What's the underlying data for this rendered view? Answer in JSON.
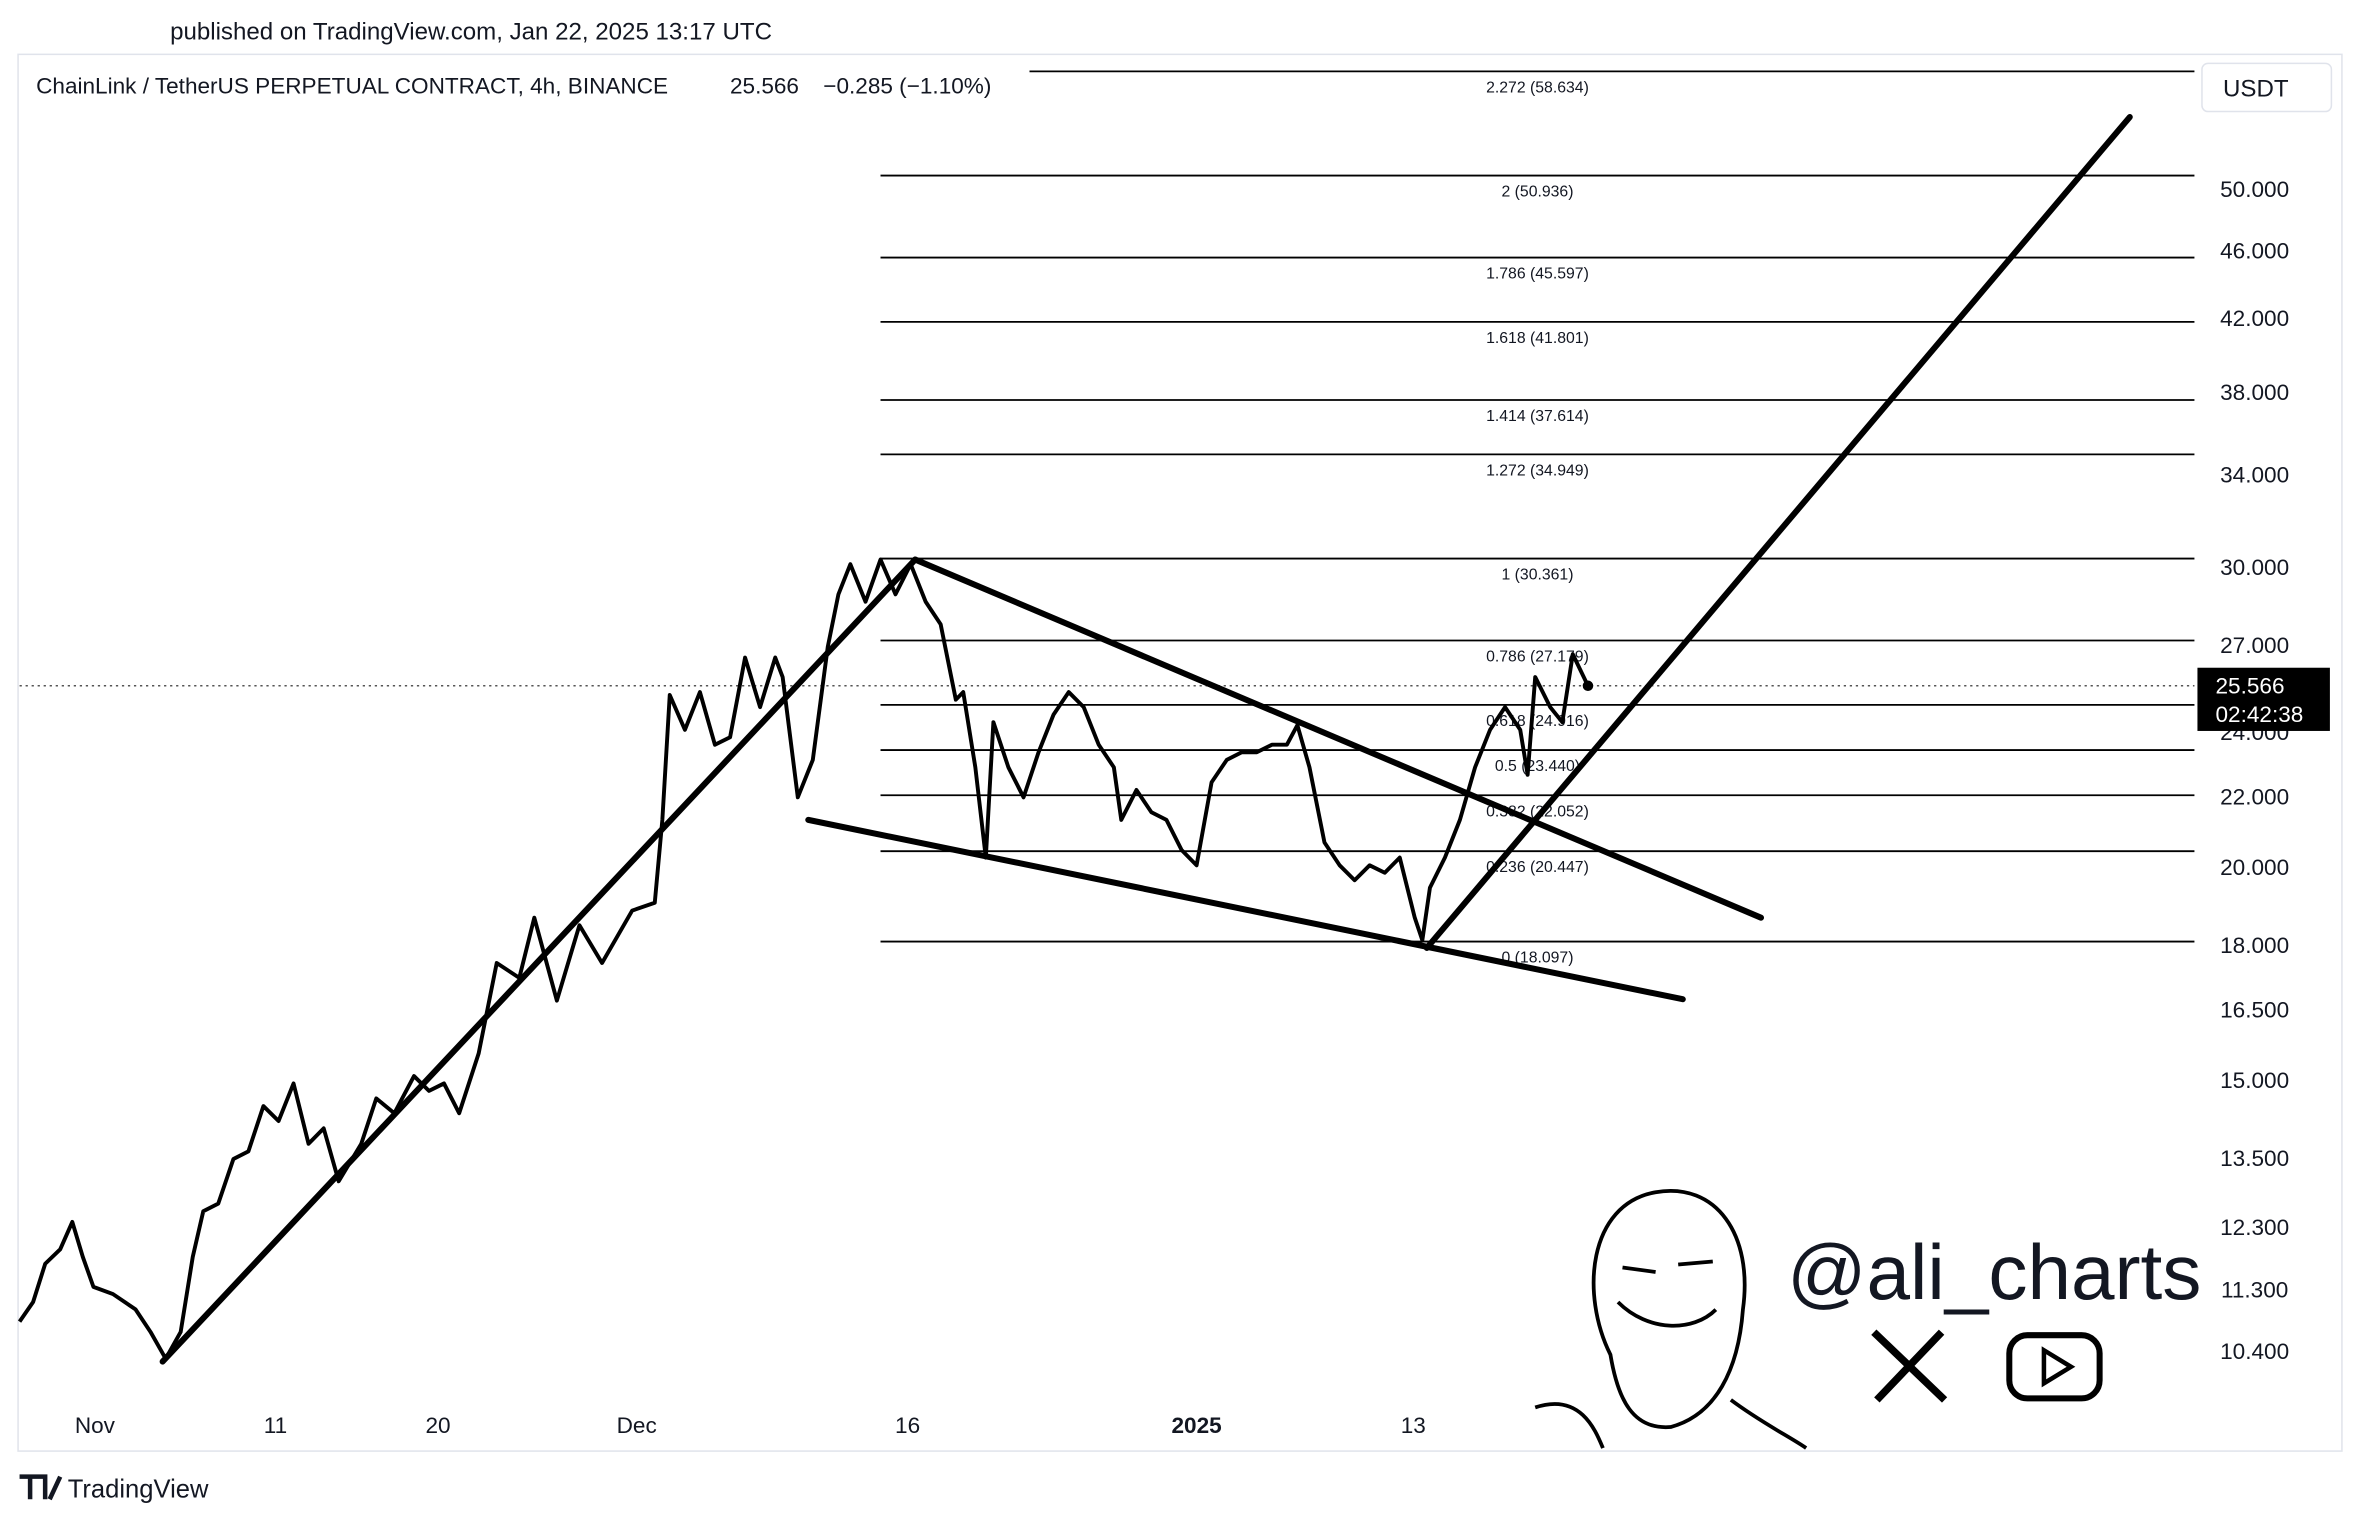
{
  "header": {
    "published": "published on TradingView.com, Jan 22, 2025 13:17 UTC"
  },
  "chart_data": {
    "type": "line",
    "title": "ChainLink / TetherUS PERPETUAL CONTRACT, 4h, BINANCE",
    "last_price": 25.566,
    "change": "−0.285 (−1.10%)",
    "countdown": "02:42:38",
    "currency": "USDT",
    "color": "#000000",
    "log_scale": true,
    "grid": false,
    "x": [
      -4.17,
      -3.42,
      -2.75,
      -1.92,
      -1.25,
      -0.67,
      -0.08,
      1,
      2.25,
      3.08,
      3.92,
      4.75,
      5.42,
      6,
      6.83,
      7.67,
      8.5,
      9.33,
      10.17,
      11,
      11.83,
      12.67,
      13.5,
      14.75,
      15.58,
      16.58,
      17.67,
      18.5,
      19.33,
      20.17,
      21.25,
      22.25,
      23.5,
      24.33,
      25.58,
      26.83,
      28.08,
      29.75,
      31,
      31.42,
      31.83,
      32.67,
      33.5,
      34.33,
      35.17,
      36,
      36.83,
      37.67,
      38.08,
      38.92,
      39.75,
      40.58,
      41.17,
      41.83,
      42.67,
      43.5,
      44.33,
      45.17,
      46,
      46.83,
      47.67,
      48.08,
      48.75,
      49.33,
      49.75,
      50.58,
      51.42,
      52.25,
      53.08,
      53.92,
      54.75,
      55.58,
      56.42,
      56.83,
      57.67,
      58.5,
      59.33,
      60.17,
      61,
      61.83,
      62.67,
      63.5,
      64.33,
      65.17,
      66,
      66.58,
      67.25,
      68.08,
      68.92,
      69.75,
      70.58,
      71.42,
      72.25,
      73.08,
      73.5,
      73.92,
      74.75,
      75.58,
      76.42,
      77.25,
      78.08,
      78.92,
      79.33,
      79.75,
      80.58,
      81.25,
      81.83,
      82.67
    ],
    "values": [
      10.83,
      11.12,
      11.71,
      11.94,
      12.39,
      11.82,
      11.35,
      11.24,
      11.01,
      10.68,
      10.3,
      10.68,
      11.82,
      12.57,
      12.7,
      13.49,
      13.63,
      14.49,
      14.2,
      14.94,
      13.77,
      14.06,
      13.09,
      13.77,
      14.64,
      14.35,
      15.09,
      14.79,
      14.94,
      14.35,
      15.56,
      17.58,
      17.23,
      18.69,
      16.71,
      18.5,
      17.58,
      18.87,
      19.07,
      21.33,
      25.25,
      24.09,
      25.35,
      23.61,
      23.85,
      26.56,
      24.84,
      26.56,
      25.87,
      21.99,
      23.13,
      26.95,
      28.93,
      30.13,
      28.64,
      30.32,
      28.93,
      30.13,
      28.64,
      27.78,
      25.09,
      25.35,
      22.9,
      20.27,
      24.34,
      22.9,
      21.99,
      23.37,
      24.59,
      25.35,
      24.84,
      23.61,
      22.9,
      21.33,
      22.21,
      21.55,
      21.33,
      20.48,
      20.06,
      22.44,
      23.13,
      23.37,
      23.37,
      23.61,
      23.61,
      24.24,
      22.9,
      20.69,
      20.06,
      19.66,
      20.06,
      19.86,
      20.27,
      18.69,
      18.13,
      19.46,
      20.27,
      21.33,
      22.9,
      24.09,
      24.84,
      24.09,
      22.67,
      25.87,
      24.84,
      24.34,
      26.68,
      25.566
    ],
    "xlim": [
      -4.17,
      116.25
    ],
    "xticks": [
      {
        "value": 0,
        "label": "Nov"
      },
      {
        "value": 10,
        "label": "11"
      },
      {
        "value": 19,
        "label": "20"
      },
      {
        "value": 30,
        "label": "Dec"
      },
      {
        "value": 45,
        "label": "16"
      },
      {
        "value": 61,
        "label": "2025"
      },
      {
        "value": 73,
        "label": "13"
      }
    ],
    "ylim": [
      9.11,
      60
    ],
    "yticks": [
      {
        "value": 50,
        "label": "50.000"
      },
      {
        "value": 46,
        "label": "46.000"
      },
      {
        "value": 42,
        "label": "42.000"
      },
      {
        "value": 38,
        "label": "38.000"
      },
      {
        "value": 34,
        "label": "34.000"
      },
      {
        "value": 30,
        "label": "30.000"
      },
      {
        "value": 27,
        "label": "27.000"
      },
      {
        "value": 24,
        "label": "24.000"
      },
      {
        "value": 22,
        "label": "22.000"
      },
      {
        "value": 20,
        "label": "20.000"
      },
      {
        "value": 18,
        "label": "18.000"
      },
      {
        "value": 16.5,
        "label": "16.500"
      },
      {
        "value": 15,
        "label": "15.000"
      },
      {
        "value": 13.5,
        "label": "13.500"
      },
      {
        "value": 12.3,
        "label": "12.300"
      },
      {
        "value": 11.3,
        "label": "11.300"
      },
      {
        "value": 10.4,
        "label": "10.400"
      }
    ],
    "fib": {
      "x_start": 43.5,
      "levels": [
        {
          "value": 58.634,
          "label": "2.272 (58.634)"
        },
        {
          "value": 50.936,
          "label": "2 (50.936)"
        },
        {
          "value": 45.597,
          "label": "1.786 (45.597)"
        },
        {
          "value": 41.801,
          "label": "1.618 (41.801)"
        },
        {
          "value": 37.614,
          "label": "1.414 (37.614)"
        },
        {
          "value": 34.949,
          "label": "1.272 (34.949)"
        },
        {
          "value": 30.361,
          "label": "1 (30.361)"
        },
        {
          "value": 27.179,
          "label": "0.786 (27.179)"
        },
        {
          "value": 24.916,
          "label": "0.618 (24.916)"
        },
        {
          "value": 23.44,
          "label": "0.5 (23.440)"
        },
        {
          "value": 22.052,
          "label": "0.382 (22.052)"
        },
        {
          "value": 20.447,
          "label": "0.236 (20.447)"
        },
        {
          "value": 18.097,
          "label": "0 (18.097)"
        }
      ]
    },
    "trendlines": [
      {
        "x": [
          3.75,
          45.42
        ],
        "y": [
          10.26,
          30.32
        ]
      },
      {
        "x": [
          45.42,
          92.25
        ],
        "y": [
          30.32,
          18.69
        ]
      },
      {
        "x": [
          39.5,
          87.92
        ],
        "y": [
          21.33,
          16.74
        ]
      },
      {
        "x": [
          73.75,
          112.67
        ],
        "y": [
          17.94,
          55.13
        ]
      }
    ]
  },
  "watermark": {
    "handle": "@ali_charts"
  },
  "footer": {
    "brand": "TradingView"
  }
}
